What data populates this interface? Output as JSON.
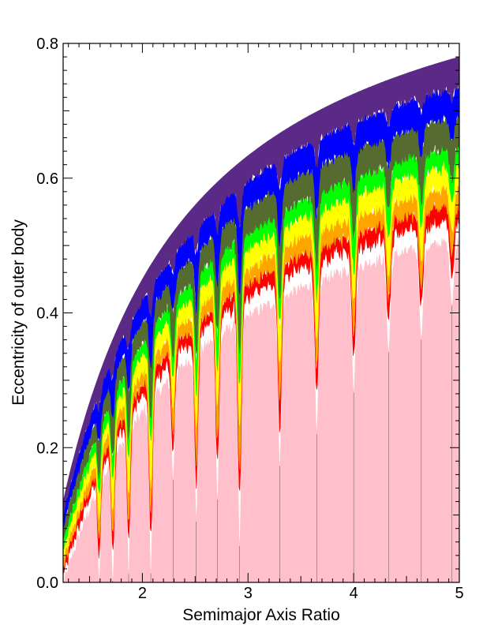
{
  "chart_data": {
    "type": "heatmap",
    "title": "",
    "xlabel": "Semimajor Axis Ratio",
    "ylabel": "Eccentricity of outer body",
    "xlim": [
      1.25,
      5.0
    ],
    "ylim": [
      0.0,
      0.8
    ],
    "x_ticks": [
      2,
      3,
      4,
      5
    ],
    "x_tick_labels": [
      "2",
      "3",
      "4",
      "5"
    ],
    "y_ticks": [
      0.0,
      0.2,
      0.4,
      0.6,
      0.8
    ],
    "y_tick_labels": [
      "0.0",
      "0.2",
      "0.4",
      "0.6",
      "0.8"
    ],
    "grid": false,
    "legend": "none",
    "colors": {
      "stable": "#ffc0cb",
      "band_red": "#ff0000",
      "band_orange": "#ffa500",
      "band_yellow": "#ffff00",
      "band_green": "#00ff00",
      "band_olive": "#556b2f",
      "band_blue": "#0000ff",
      "band_purple": "#5b2a86"
    },
    "collision_boundary": "e = 1 - 1.1/x",
    "band_order": [
      "stable",
      "band_red",
      "band_orange",
      "band_yellow",
      "band_green",
      "band_olive",
      "band_blue",
      "band_purple"
    ],
    "resonance_spikes": [
      {
        "x": 1.59,
        "depth": 0.0
      },
      {
        "x": 1.72,
        "depth": 0.0
      },
      {
        "x": 1.87,
        "depth": 0.01
      },
      {
        "x": 2.08,
        "depth": 0.01
      },
      {
        "x": 2.29,
        "depth": 0.15
      },
      {
        "x": 2.51,
        "depth": 0.09
      },
      {
        "x": 2.71,
        "depth": 0.12
      },
      {
        "x": 2.92,
        "depth": 0.05
      },
      {
        "x": 3.3,
        "depth": 0.17
      },
      {
        "x": 3.65,
        "depth": 0.22
      },
      {
        "x": 4.0,
        "depth": 0.28
      },
      {
        "x": 4.33,
        "depth": 0.34
      },
      {
        "x": 4.64,
        "depth": 0.36
      },
      {
        "x": 4.93,
        "depth": 0.41
      }
    ]
  }
}
